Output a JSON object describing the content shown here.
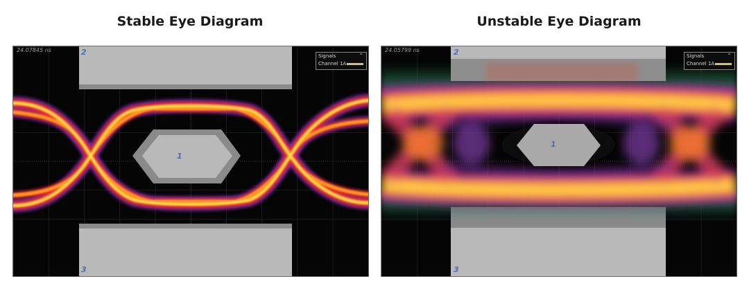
{
  "panels": [
    {
      "title": "Stable Eye Diagram",
      "timestamp": "24.07845 ns",
      "legend": {
        "header": "Signals",
        "channel": "Channel 1A",
        "swatch_color": "#d6c06a",
        "collapse_icon": "chevron-up-icon"
      },
      "mask_labels": [
        "1",
        "2",
        "3"
      ]
    },
    {
      "title": "Unstable Eye Diagram",
      "timestamp": "24.05799 ns",
      "legend": {
        "header": "Signals",
        "channel": "Channel 1A",
        "swatch_color": "#d6c06a",
        "collapse_icon": "chevron-up-icon"
      },
      "mask_labels": [
        "1",
        "2",
        "3"
      ]
    }
  ]
}
